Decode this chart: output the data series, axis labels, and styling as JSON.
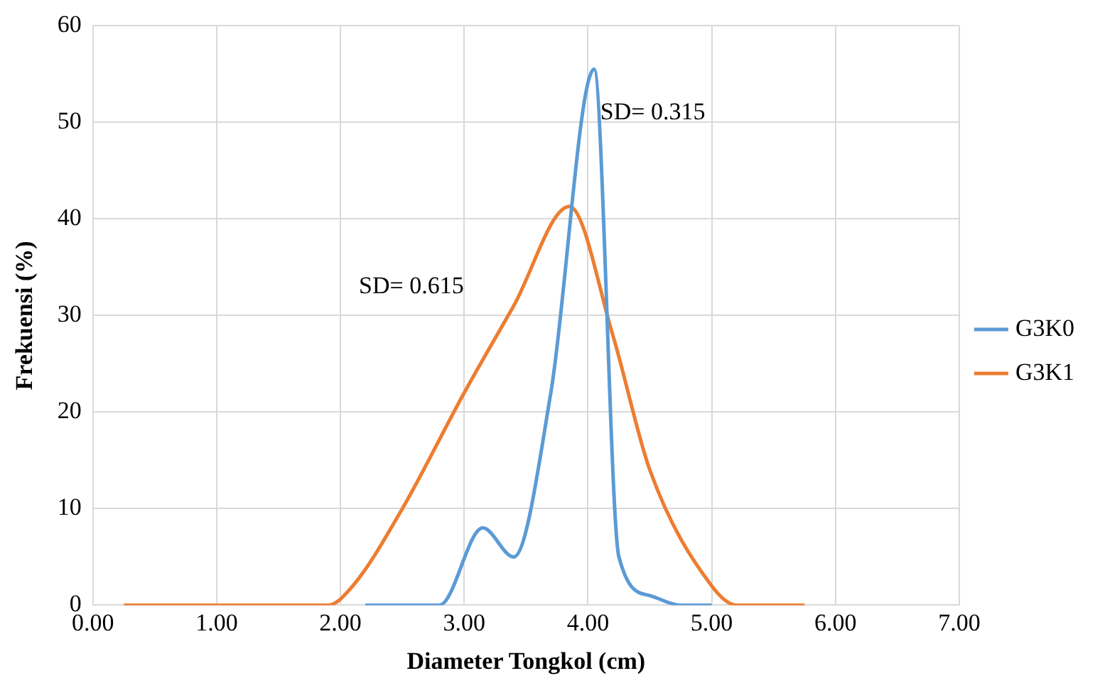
{
  "chart_data": {
    "type": "line",
    "xlabel": "Diameter Tongkol (cm)",
    "ylabel": "Frekuensi (%)",
    "xlim": [
      0,
      7
    ],
    "xticks": [
      {
        "value": 0,
        "label": "0.00"
      },
      {
        "value": 1,
        "label": "1.00"
      },
      {
        "value": 2,
        "label": "2.00"
      },
      {
        "value": 3,
        "label": "3.00"
      },
      {
        "value": 4,
        "label": "4.00"
      },
      {
        "value": 5,
        "label": "5.00"
      },
      {
        "value": 6,
        "label": "6.00"
      },
      {
        "value": 7,
        "label": "7.00"
      }
    ],
    "ylim": [
      0,
      60
    ],
    "yticks": [
      0,
      10,
      20,
      30,
      40,
      50,
      60
    ],
    "grid": true,
    "legend": "right",
    "marker": "none",
    "line_style": "solid",
    "series": [
      {
        "name": "G3K0",
        "color": "#5b9bd5",
        "x": [
          2.2,
          2.5,
          2.8,
          3.15,
          3.4,
          3.7,
          4.05,
          4.25,
          4.5,
          4.75,
          5.0
        ],
        "values": [
          0,
          0,
          0,
          8,
          5,
          22,
          55.5,
          5,
          1,
          0,
          0
        ]
      },
      {
        "name": "G3K1",
        "color": "#ed7d31",
        "x": [
          0.25,
          1.0,
          1.5,
          1.9,
          2.1,
          2.5,
          3.0,
          3.4,
          3.85,
          4.2,
          4.5,
          5.0,
          5.2,
          5.5,
          5.75
        ],
        "values": [
          0,
          0,
          0,
          0,
          2,
          10,
          22,
          31,
          41.3,
          28,
          14,
          2,
          0,
          0,
          0
        ]
      }
    ],
    "annotations": [
      {
        "text": "SD= 0.315",
        "x": 4.1,
        "y": 51
      },
      "SD= 0.615"
    ]
  }
}
